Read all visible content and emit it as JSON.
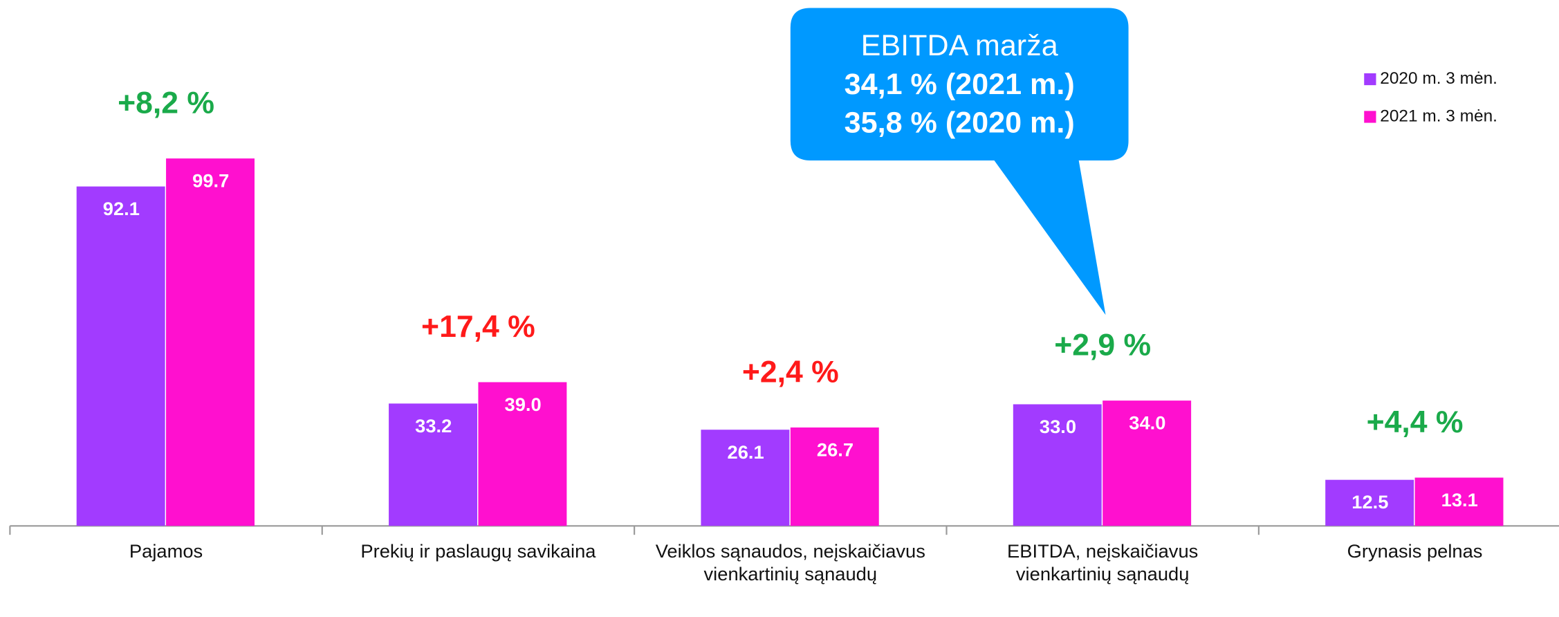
{
  "chart_data": {
    "type": "bar",
    "categories": [
      "Pajamos",
      "Prekių ir paslaugų savikaina",
      "Veiklos sąnaudos, neįskaičiavus vienkartinių sąnaudų",
      "EBITDA, neįskaičiavus vienkartinių sąnaudų",
      "Grynasis pelnas"
    ],
    "series": [
      {
        "name": "2020 m. 3 mėn.",
        "color": "#a23bff",
        "values": [
          92.1,
          33.2,
          26.1,
          33.0,
          12.5
        ],
        "value_labels": [
          "92.1",
          "33.2",
          "26.1",
          "33.0",
          "12.5"
        ]
      },
      {
        "name": "2021 m. 3 mėn.",
        "color": "#ff10cf",
        "values": [
          99.7,
          39.0,
          26.7,
          34.0,
          13.1
        ],
        "value_labels": [
          "99.7",
          "39.0",
          "26.7",
          "34.0",
          "13.1"
        ]
      }
    ],
    "annotations": [
      {
        "text": "+8,2 %",
        "color": "#1aaa4a"
      },
      {
        "text": "+17,4 %",
        "color": "#ff1a1a"
      },
      {
        "text": "+2,4 %",
        "color": "#ff1a1a"
      },
      {
        "text": "+2,9 %",
        "color": "#1aaa4a"
      },
      {
        "text": "+4,4 %",
        "color": "#1aaa4a"
      }
    ],
    "callout": {
      "lines": [
        "EBITDA marža",
        "34,1 % (2021 m.)",
        "35,8 % (2020 m.)"
      ],
      "color": "#0099ff"
    },
    "legend": "top-right"
  }
}
